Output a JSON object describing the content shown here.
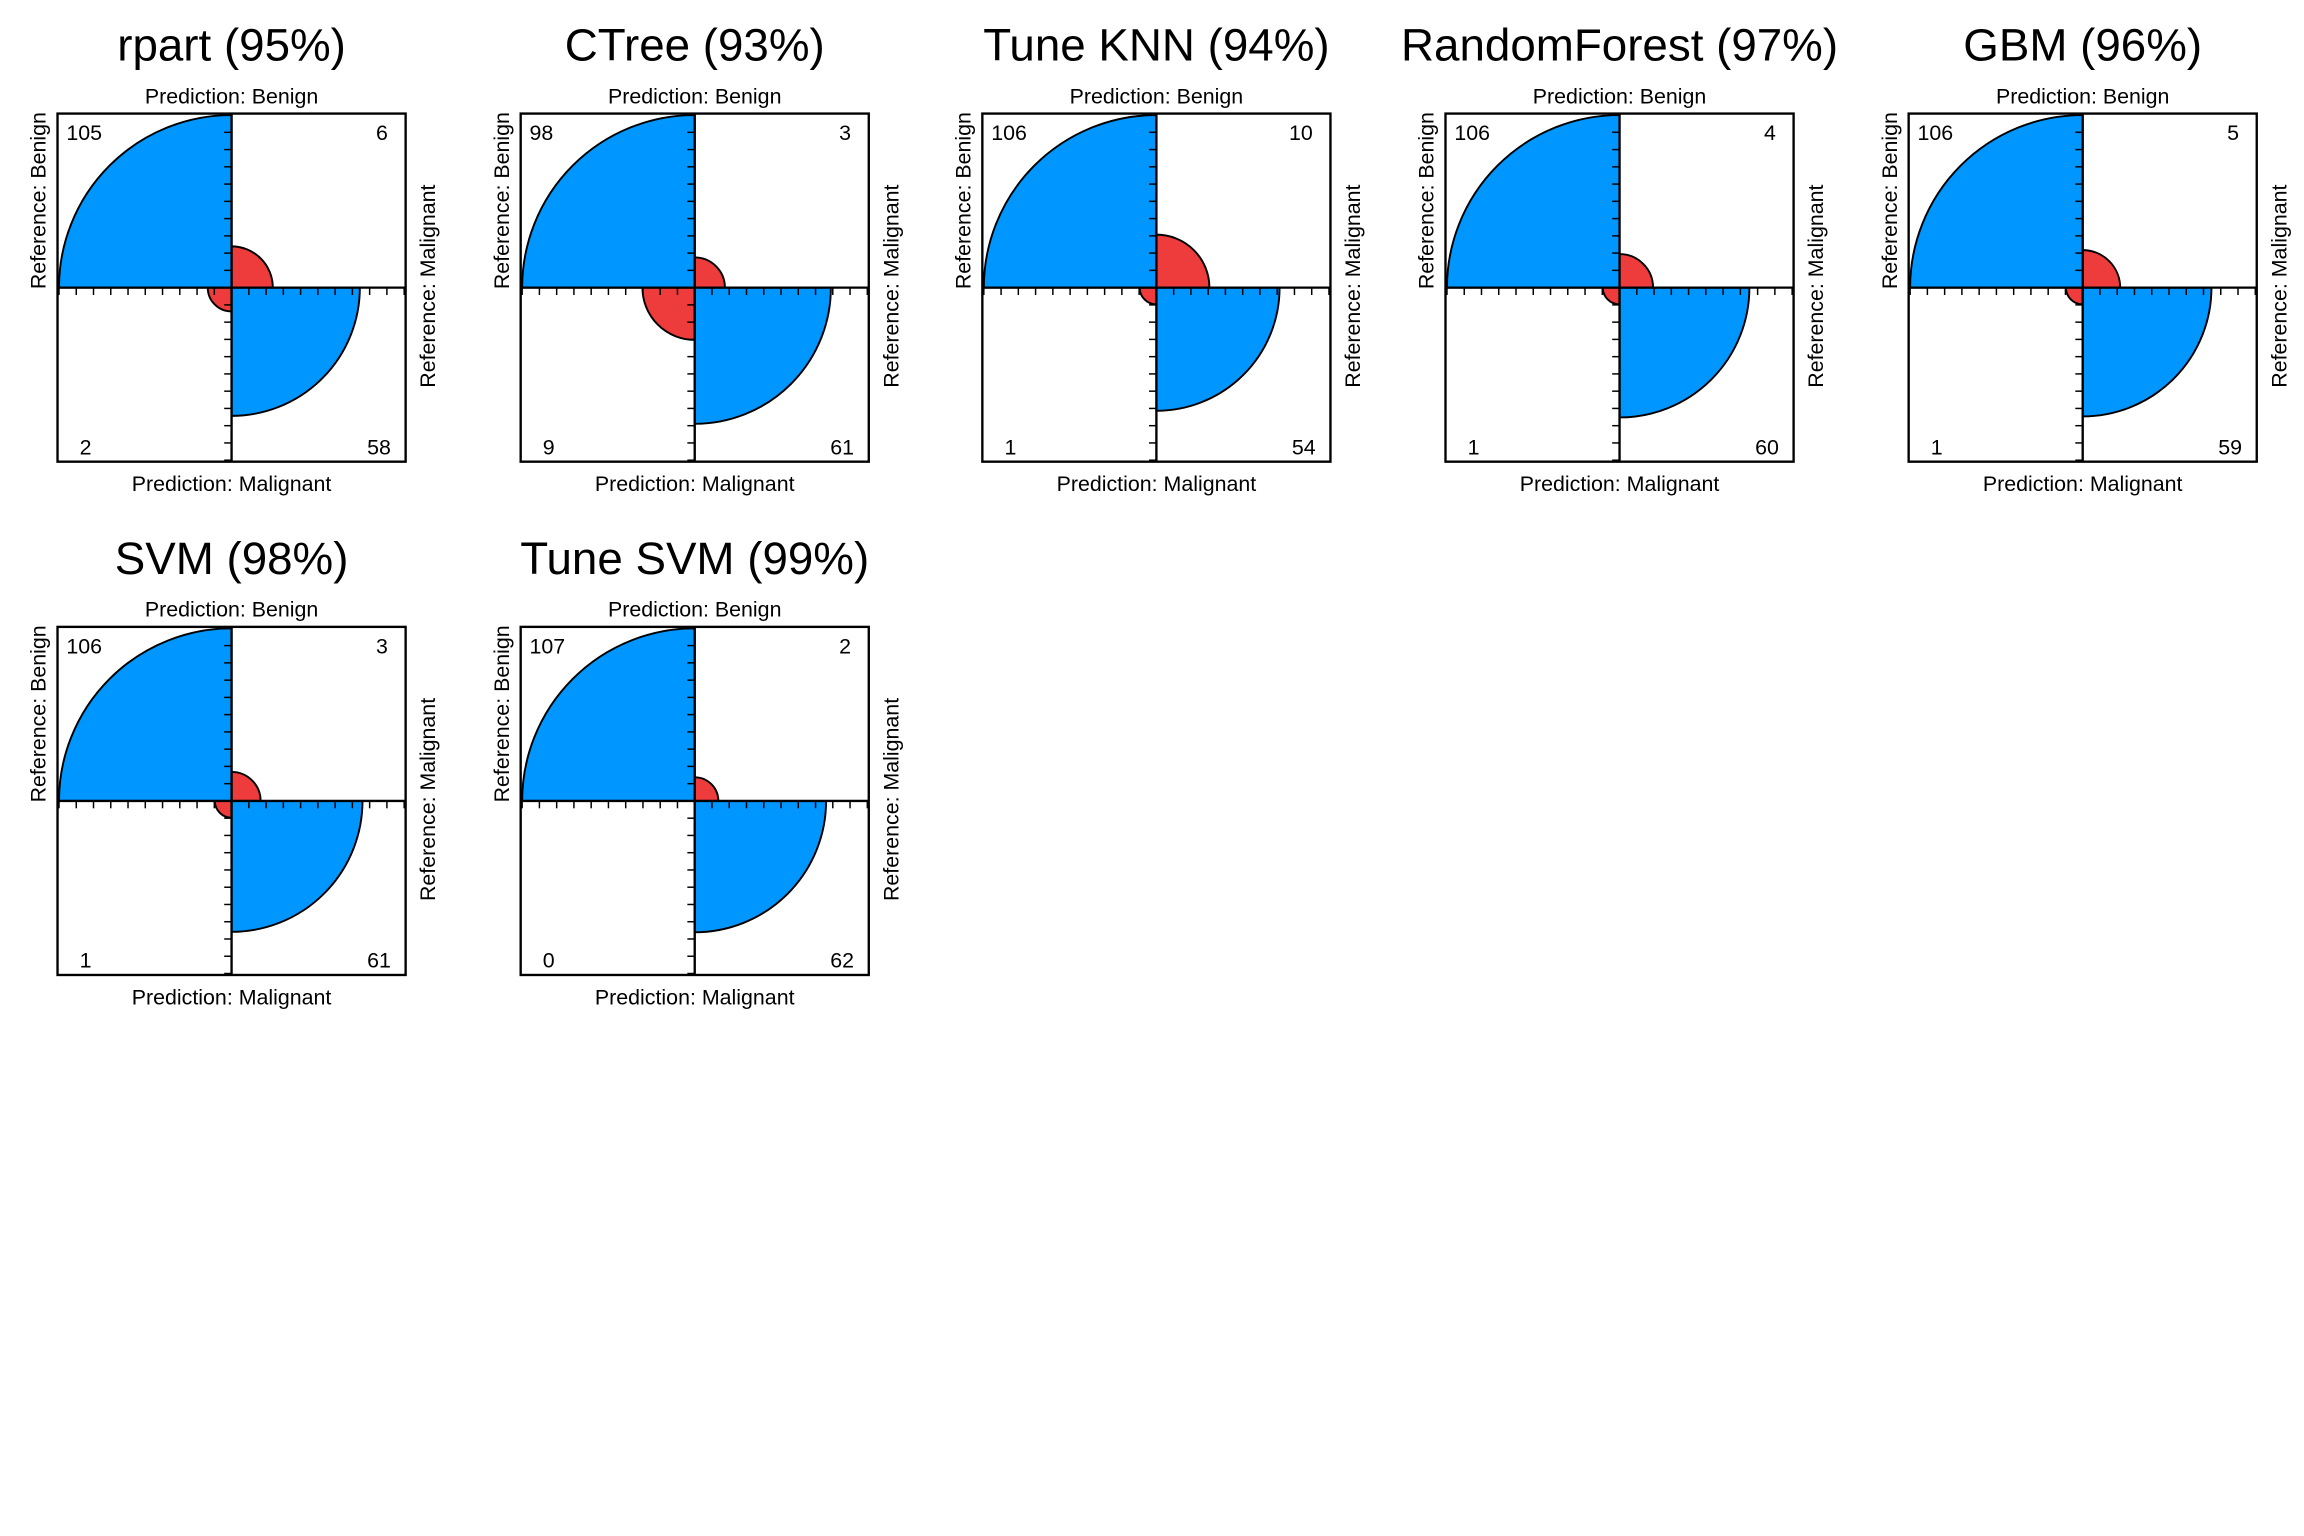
{
  "figure": {
    "description": "Fourfold plots of confusion matrices for breast cancer classification models"
  },
  "labels": {
    "top": "Prediction: Benign",
    "bottom": "Prediction: Malignant",
    "left": "Reference: Benign",
    "right": "Reference: Malignant"
  },
  "colors": {
    "correct": "#0096FF",
    "incorrect": "#EE3B3B",
    "frame": "#000000"
  },
  "chart_data": [
    {
      "type": "fourfold",
      "title": "rpart (95%)",
      "cells": {
        "pred_benign_ref_benign": 105,
        "pred_benign_ref_malignant": 6,
        "pred_malignant_ref_benign": 2,
        "pred_malignant_ref_malignant": 58
      }
    },
    {
      "type": "fourfold",
      "title": "CTree (93%)",
      "cells": {
        "pred_benign_ref_benign": 98,
        "pred_benign_ref_malignant": 3,
        "pred_malignant_ref_benign": 9,
        "pred_malignant_ref_malignant": 61
      }
    },
    {
      "type": "fourfold",
      "title": "Tune KNN (94%)",
      "cells": {
        "pred_benign_ref_benign": 106,
        "pred_benign_ref_malignant": 10,
        "pred_malignant_ref_benign": 1,
        "pred_malignant_ref_malignant": 54
      }
    },
    {
      "type": "fourfold",
      "title": "RandomForest (97%)",
      "cells": {
        "pred_benign_ref_benign": 106,
        "pred_benign_ref_malignant": 4,
        "pred_malignant_ref_benign": 1,
        "pred_malignant_ref_malignant": 60
      }
    },
    {
      "type": "fourfold",
      "title": "GBM (96%)",
      "cells": {
        "pred_benign_ref_benign": 106,
        "pred_benign_ref_malignant": 5,
        "pred_malignant_ref_benign": 1,
        "pred_malignant_ref_malignant": 59
      }
    },
    {
      "type": "fourfold",
      "title": "SVM (98%)",
      "cells": {
        "pred_benign_ref_benign": 106,
        "pred_benign_ref_malignant": 3,
        "pred_malignant_ref_benign": 1,
        "pred_malignant_ref_malignant": 61
      }
    },
    {
      "type": "fourfold",
      "title": "Tune SVM (99%)",
      "cells": {
        "pred_benign_ref_benign": 107,
        "pred_benign_ref_malignant": 2,
        "pred_malignant_ref_benign": 0,
        "pred_malignant_ref_malignant": 62
      }
    }
  ]
}
